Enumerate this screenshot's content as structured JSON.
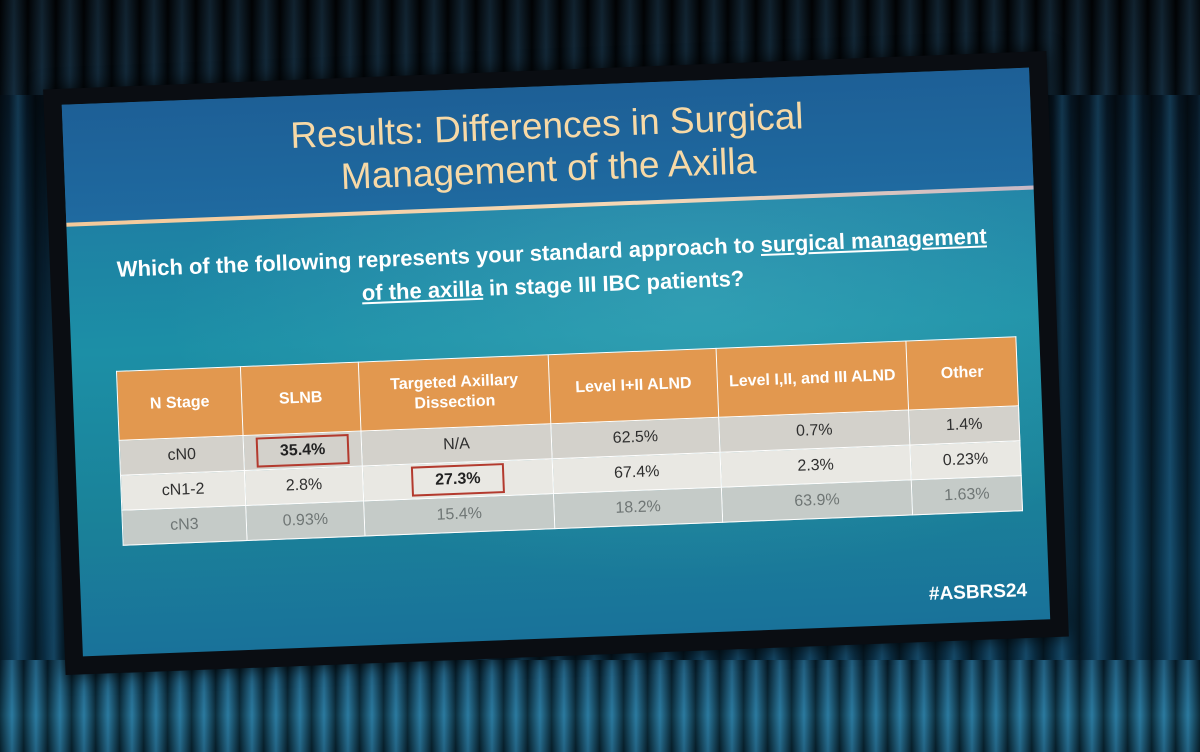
{
  "slide": {
    "title": "Results: Differences in Surgical\nManagement of the Axilla",
    "question": {
      "part1": "Which of the following represents your standard approach to ",
      "underlined": "surgical management of the axilla",
      "part2": " in stage III IBC patients?"
    },
    "hashtag": "#ASBRS24"
  },
  "table": {
    "headers": [
      "N Stage",
      "SLNB",
      "Targeted Axillary Dissection",
      "Level I+II ALND",
      "Level I,II, and III ALND",
      "Other"
    ],
    "rows": [
      [
        "cN0",
        "35.4%",
        "N/A",
        "62.5%",
        "0.7%",
        "1.4%"
      ],
      [
        "cN1-2",
        "2.8%",
        "27.3%",
        "67.4%",
        "2.3%",
        "0.23%"
      ],
      [
        "cN3",
        "0.93%",
        "15.4%",
        "18.2%",
        "63.9%",
        "1.63%"
      ]
    ],
    "highlighted": [
      "row0-col1",
      "row1-col2"
    ]
  },
  "colors": {
    "header_bg": "#e2984f",
    "title_text": "#f7d9a6",
    "highlight_border": "#b33a2e",
    "slide_bg": "#1e7fa3"
  }
}
